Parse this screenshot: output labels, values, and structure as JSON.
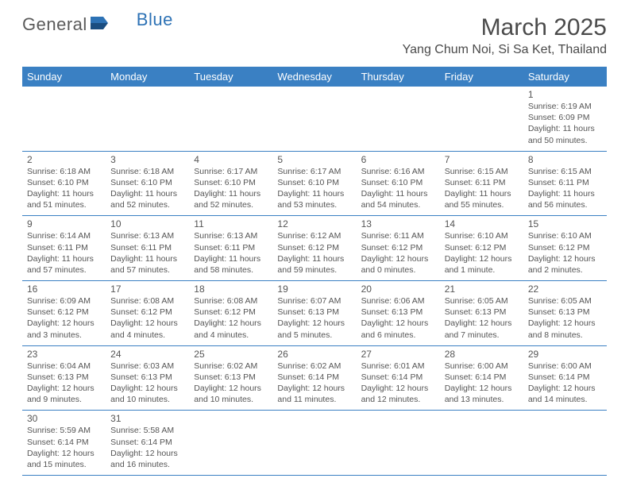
{
  "logo": {
    "part1": "General",
    "part2": "Blue"
  },
  "title": "March 2025",
  "location": "Yang Chum Noi, Si Sa Ket, Thailand",
  "colors": {
    "header_bg": "#3a80c3",
    "header_text": "#ffffff",
    "border": "#3a80c3",
    "text": "#555555",
    "logo_gray": "#5a5a5a",
    "logo_blue": "#2d72b5"
  },
  "day_headers": [
    "Sunday",
    "Monday",
    "Tuesday",
    "Wednesday",
    "Thursday",
    "Friday",
    "Saturday"
  ],
  "weeks": [
    [
      {
        "empty": true
      },
      {
        "empty": true
      },
      {
        "empty": true
      },
      {
        "empty": true
      },
      {
        "empty": true
      },
      {
        "empty": true
      },
      {
        "day": "1",
        "sunrise": "Sunrise: 6:19 AM",
        "sunset": "Sunset: 6:09 PM",
        "daylight1": "Daylight: 11 hours",
        "daylight2": "and 50 minutes."
      }
    ],
    [
      {
        "day": "2",
        "sunrise": "Sunrise: 6:18 AM",
        "sunset": "Sunset: 6:10 PM",
        "daylight1": "Daylight: 11 hours",
        "daylight2": "and 51 minutes."
      },
      {
        "day": "3",
        "sunrise": "Sunrise: 6:18 AM",
        "sunset": "Sunset: 6:10 PM",
        "daylight1": "Daylight: 11 hours",
        "daylight2": "and 52 minutes."
      },
      {
        "day": "4",
        "sunrise": "Sunrise: 6:17 AM",
        "sunset": "Sunset: 6:10 PM",
        "daylight1": "Daylight: 11 hours",
        "daylight2": "and 52 minutes."
      },
      {
        "day": "5",
        "sunrise": "Sunrise: 6:17 AM",
        "sunset": "Sunset: 6:10 PM",
        "daylight1": "Daylight: 11 hours",
        "daylight2": "and 53 minutes."
      },
      {
        "day": "6",
        "sunrise": "Sunrise: 6:16 AM",
        "sunset": "Sunset: 6:10 PM",
        "daylight1": "Daylight: 11 hours",
        "daylight2": "and 54 minutes."
      },
      {
        "day": "7",
        "sunrise": "Sunrise: 6:15 AM",
        "sunset": "Sunset: 6:11 PM",
        "daylight1": "Daylight: 11 hours",
        "daylight2": "and 55 minutes."
      },
      {
        "day": "8",
        "sunrise": "Sunrise: 6:15 AM",
        "sunset": "Sunset: 6:11 PM",
        "daylight1": "Daylight: 11 hours",
        "daylight2": "and 56 minutes."
      }
    ],
    [
      {
        "day": "9",
        "sunrise": "Sunrise: 6:14 AM",
        "sunset": "Sunset: 6:11 PM",
        "daylight1": "Daylight: 11 hours",
        "daylight2": "and 57 minutes."
      },
      {
        "day": "10",
        "sunrise": "Sunrise: 6:13 AM",
        "sunset": "Sunset: 6:11 PM",
        "daylight1": "Daylight: 11 hours",
        "daylight2": "and 57 minutes."
      },
      {
        "day": "11",
        "sunrise": "Sunrise: 6:13 AM",
        "sunset": "Sunset: 6:11 PM",
        "daylight1": "Daylight: 11 hours",
        "daylight2": "and 58 minutes."
      },
      {
        "day": "12",
        "sunrise": "Sunrise: 6:12 AM",
        "sunset": "Sunset: 6:12 PM",
        "daylight1": "Daylight: 11 hours",
        "daylight2": "and 59 minutes."
      },
      {
        "day": "13",
        "sunrise": "Sunrise: 6:11 AM",
        "sunset": "Sunset: 6:12 PM",
        "daylight1": "Daylight: 12 hours",
        "daylight2": "and 0 minutes."
      },
      {
        "day": "14",
        "sunrise": "Sunrise: 6:10 AM",
        "sunset": "Sunset: 6:12 PM",
        "daylight1": "Daylight: 12 hours",
        "daylight2": "and 1 minute."
      },
      {
        "day": "15",
        "sunrise": "Sunrise: 6:10 AM",
        "sunset": "Sunset: 6:12 PM",
        "daylight1": "Daylight: 12 hours",
        "daylight2": "and 2 minutes."
      }
    ],
    [
      {
        "day": "16",
        "sunrise": "Sunrise: 6:09 AM",
        "sunset": "Sunset: 6:12 PM",
        "daylight1": "Daylight: 12 hours",
        "daylight2": "and 3 minutes."
      },
      {
        "day": "17",
        "sunrise": "Sunrise: 6:08 AM",
        "sunset": "Sunset: 6:12 PM",
        "daylight1": "Daylight: 12 hours",
        "daylight2": "and 4 minutes."
      },
      {
        "day": "18",
        "sunrise": "Sunrise: 6:08 AM",
        "sunset": "Sunset: 6:12 PM",
        "daylight1": "Daylight: 12 hours",
        "daylight2": "and 4 minutes."
      },
      {
        "day": "19",
        "sunrise": "Sunrise: 6:07 AM",
        "sunset": "Sunset: 6:13 PM",
        "daylight1": "Daylight: 12 hours",
        "daylight2": "and 5 minutes."
      },
      {
        "day": "20",
        "sunrise": "Sunrise: 6:06 AM",
        "sunset": "Sunset: 6:13 PM",
        "daylight1": "Daylight: 12 hours",
        "daylight2": "and 6 minutes."
      },
      {
        "day": "21",
        "sunrise": "Sunrise: 6:05 AM",
        "sunset": "Sunset: 6:13 PM",
        "daylight1": "Daylight: 12 hours",
        "daylight2": "and 7 minutes."
      },
      {
        "day": "22",
        "sunrise": "Sunrise: 6:05 AM",
        "sunset": "Sunset: 6:13 PM",
        "daylight1": "Daylight: 12 hours",
        "daylight2": "and 8 minutes."
      }
    ],
    [
      {
        "day": "23",
        "sunrise": "Sunrise: 6:04 AM",
        "sunset": "Sunset: 6:13 PM",
        "daylight1": "Daylight: 12 hours",
        "daylight2": "and 9 minutes."
      },
      {
        "day": "24",
        "sunrise": "Sunrise: 6:03 AM",
        "sunset": "Sunset: 6:13 PM",
        "daylight1": "Daylight: 12 hours",
        "daylight2": "and 10 minutes."
      },
      {
        "day": "25",
        "sunrise": "Sunrise: 6:02 AM",
        "sunset": "Sunset: 6:13 PM",
        "daylight1": "Daylight: 12 hours",
        "daylight2": "and 10 minutes."
      },
      {
        "day": "26",
        "sunrise": "Sunrise: 6:02 AM",
        "sunset": "Sunset: 6:14 PM",
        "daylight1": "Daylight: 12 hours",
        "daylight2": "and 11 minutes."
      },
      {
        "day": "27",
        "sunrise": "Sunrise: 6:01 AM",
        "sunset": "Sunset: 6:14 PM",
        "daylight1": "Daylight: 12 hours",
        "daylight2": "and 12 minutes."
      },
      {
        "day": "28",
        "sunrise": "Sunrise: 6:00 AM",
        "sunset": "Sunset: 6:14 PM",
        "daylight1": "Daylight: 12 hours",
        "daylight2": "and 13 minutes."
      },
      {
        "day": "29",
        "sunrise": "Sunrise: 6:00 AM",
        "sunset": "Sunset: 6:14 PM",
        "daylight1": "Daylight: 12 hours",
        "daylight2": "and 14 minutes."
      }
    ],
    [
      {
        "day": "30",
        "sunrise": "Sunrise: 5:59 AM",
        "sunset": "Sunset: 6:14 PM",
        "daylight1": "Daylight: 12 hours",
        "daylight2": "and 15 minutes."
      },
      {
        "day": "31",
        "sunrise": "Sunrise: 5:58 AM",
        "sunset": "Sunset: 6:14 PM",
        "daylight1": "Daylight: 12 hours",
        "daylight2": "and 16 minutes."
      },
      {
        "empty": true
      },
      {
        "empty": true
      },
      {
        "empty": true
      },
      {
        "empty": true
      },
      {
        "empty": true
      }
    ]
  ]
}
